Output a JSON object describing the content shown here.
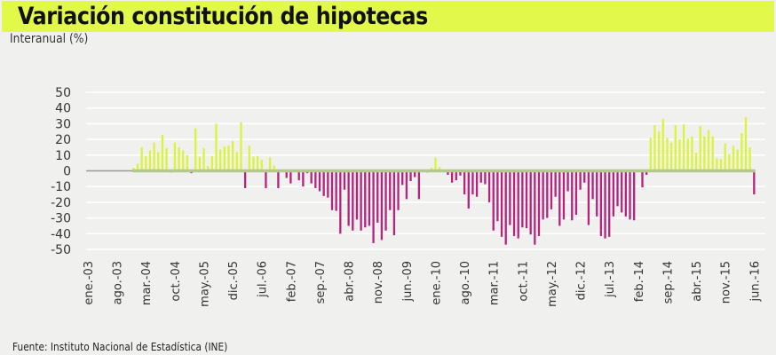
{
  "header": {
    "title": "Variación constitución de hipotecas",
    "subtitle": "Interanual (%)"
  },
  "footer": {
    "source": "Fuente: Instituto Nacional de Estadística (INE)"
  },
  "colors": {
    "positive": "#dcf23c",
    "negative": "#b5237e",
    "zero_line": "#b4c98f",
    "title_bar": "#e2f84a"
  },
  "chart_data": {
    "type": "bar",
    "title": "Variación constitución de hipotecas",
    "ylabel": "Interanual (%)",
    "xlabel": "",
    "ylim": [
      -50,
      50
    ],
    "yticks": [
      50,
      40,
      30,
      20,
      10,
      0,
      -10,
      -20,
      -30,
      -40,
      -50
    ],
    "grid": true,
    "x_start": "ene.-03",
    "x_end": "jun.-16",
    "frequency": "monthly",
    "xtick_labels": [
      "ene.-03",
      "ago.-03",
      "mar.-04",
      "oct.-04",
      "may.-05",
      "dic.-05",
      "jul.-06",
      "feb.-07",
      "sep.-07",
      "abr.-08",
      "nov.-08",
      "jun.-09",
      "ene.-10",
      "ago.-10",
      "mar.-11",
      "oct.-11",
      "may.-12",
      "dic.-12",
      "jul.-13",
      "feb.-14",
      "sep.-14",
      "abr.-15",
      "nov.-15",
      "jun.-16"
    ],
    "values": [
      null,
      null,
      null,
      null,
      null,
      null,
      null,
      null,
      null,
      null,
      null,
      2,
      4.5,
      15,
      9.5,
      13,
      18,
      12,
      23,
      14.5,
      -1,
      18,
      15,
      13,
      10,
      -1.5,
      27,
      9,
      14.5,
      3,
      9.5,
      30,
      13.5,
      15.5,
      16,
      19,
      12,
      31,
      -11,
      16,
      9,
      9.5,
      7,
      -11,
      8.5,
      3.5,
      -11,
      0,
      -4.5,
      -8,
      0,
      -6,
      -10,
      -1.5,
      -8,
      -11,
      -13,
      -16,
      -17,
      -25,
      -25.5,
      -40,
      -12,
      -35,
      -38,
      -31,
      -38,
      -36,
      -35,
      -46,
      -33,
      -44,
      -38,
      -25,
      -41,
      -25,
      -9,
      -18,
      -6.5,
      -4,
      -18,
      0,
      -1,
      2,
      8.5,
      2.5,
      0,
      -2.5,
      -7.5,
      -6,
      -3,
      -15,
      -24,
      -15,
      -16.5,
      -7.5,
      -8.5,
      -20,
      -38,
      -32,
      -42,
      -47,
      -34.5,
      -41.5,
      -43,
      -36,
      -36.5,
      -40.5,
      -47,
      -41.5,
      -31,
      -30,
      -24.5,
      -16.5,
      -35,
      -31,
      -13,
      -31.5,
      -28,
      -12,
      -7.5,
      -34.5,
      -18,
      -29,
      -41.5,
      -43,
      -42,
      -29,
      -22.5,
      -26.5,
      -29,
      -31,
      -31.5,
      1,
      -10.5,
      -2.5,
      21,
      29,
      25,
      33,
      21,
      18,
      29,
      20,
      29.5,
      20.5,
      22,
      11.5,
      28.5,
      22,
      26,
      22,
      8,
      7.5,
      17.5,
      10.5,
      16,
      13.5,
      24,
      34,
      15,
      -15
    ]
  }
}
